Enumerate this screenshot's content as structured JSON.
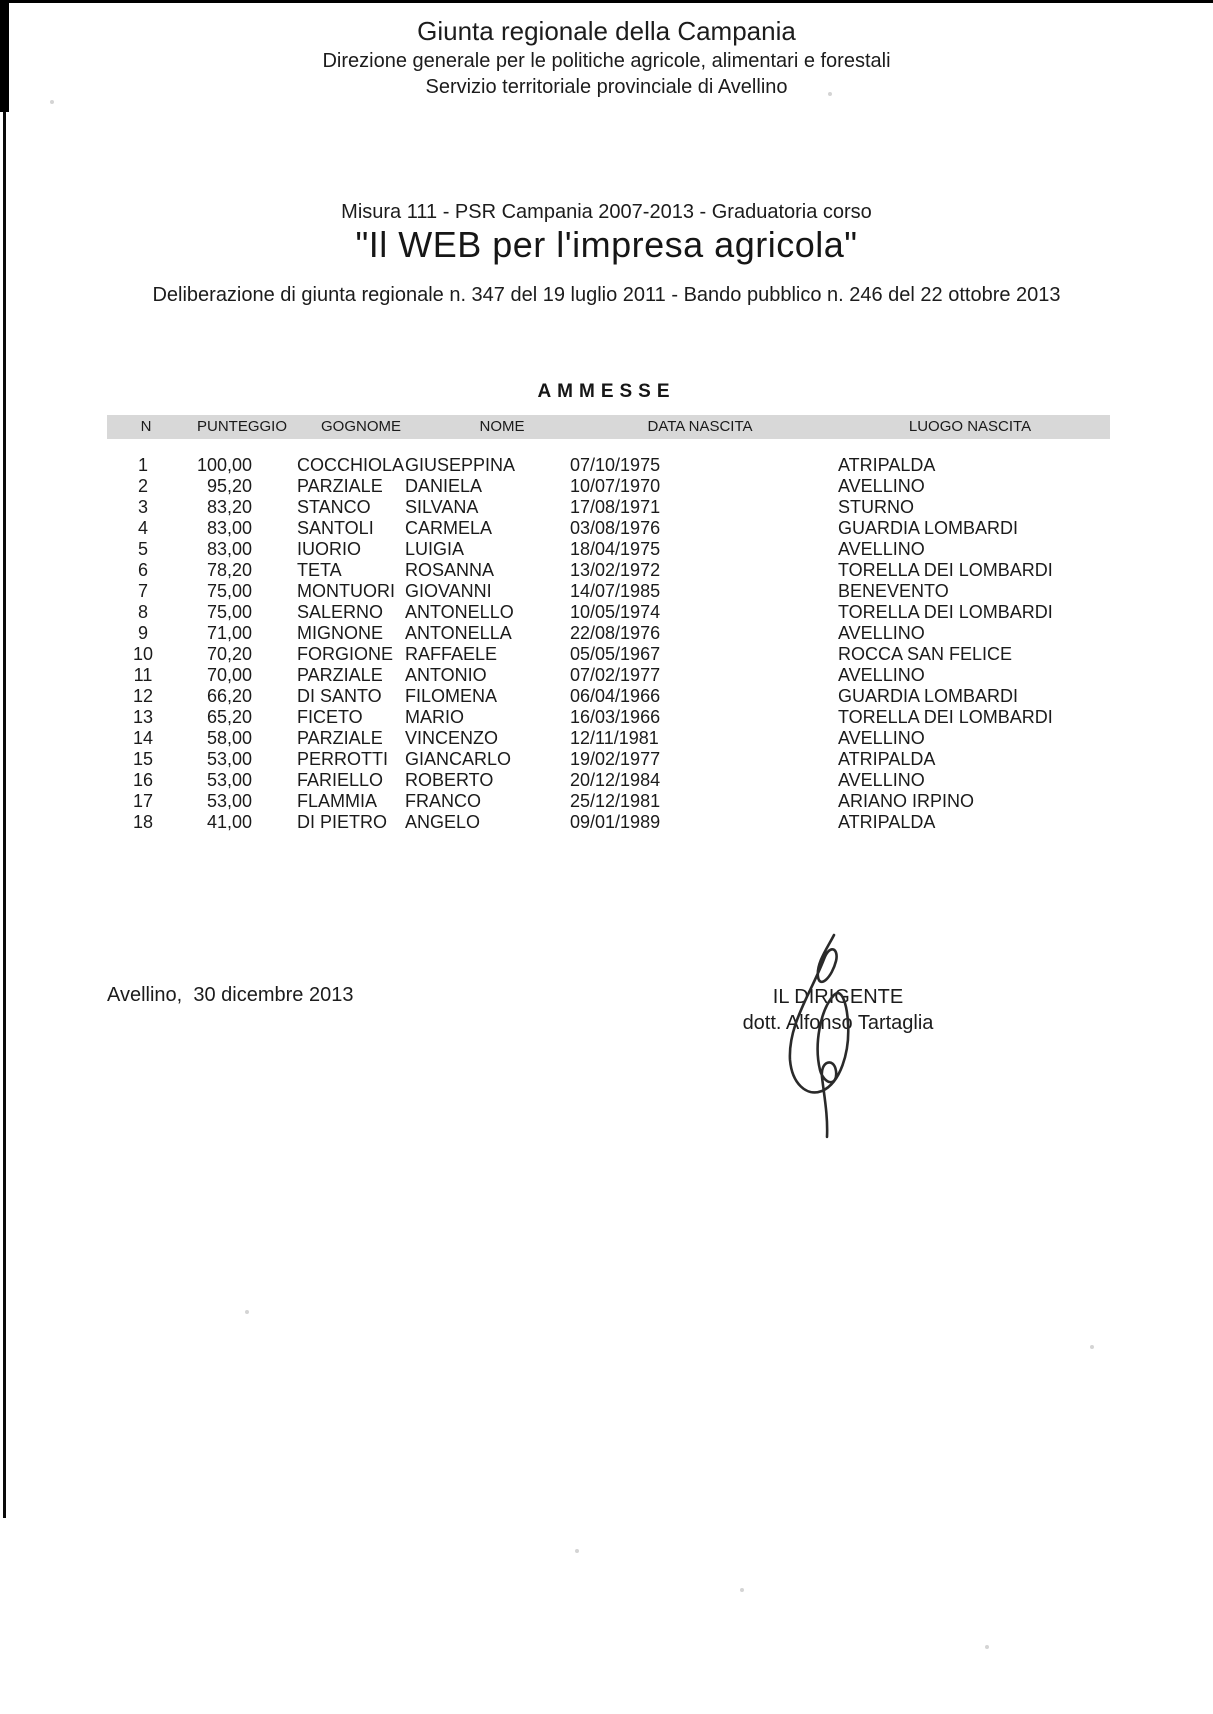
{
  "letterhead": {
    "org_line1": "Giunta regionale della Campania",
    "org_line2": "Direzione generale per le politiche agricole, alimentari e forestali",
    "org_line3": "Servizio territoriale provinciale di Avellino"
  },
  "title_block": {
    "measure_line": "Misura 111 - PSR Campania 2007-2013 - Graduatoria corso",
    "course_title": "\"Il WEB per l'impresa agricola\"",
    "deliberation_line": "Deliberazione di giunta regionale n. 347 del 19 luglio 2011 - Bando pubblico n. 246 del 22 ottobre 2013"
  },
  "section_heading": "AMMESSE",
  "table": {
    "headers": [
      "N",
      "PUNTEGGIO",
      "GOGNOME",
      "NOME",
      "DATA NASCITA",
      "LUOGO NASCITA"
    ],
    "rows": [
      {
        "n": "1",
        "punteggio": "100,00",
        "cognome": "COCCHIOLA",
        "nome": "GIUSEPPINA",
        "data_nascita": "07/10/1975",
        "luogo_nascita": "ATRIPALDA"
      },
      {
        "n": "2",
        "punteggio": "95,20",
        "cognome": "PARZIALE",
        "nome": "DANIELA",
        "data_nascita": "10/07/1970",
        "luogo_nascita": "AVELLINO"
      },
      {
        "n": "3",
        "punteggio": "83,20",
        "cognome": "STANCO",
        "nome": "SILVANA",
        "data_nascita": "17/08/1971",
        "luogo_nascita": "STURNO"
      },
      {
        "n": "4",
        "punteggio": "83,00",
        "cognome": "SANTOLI",
        "nome": "CARMELA",
        "data_nascita": "03/08/1976",
        "luogo_nascita": "GUARDIA LOMBARDI"
      },
      {
        "n": "5",
        "punteggio": "83,00",
        "cognome": "IUORIO",
        "nome": "LUIGIA",
        "data_nascita": "18/04/1975",
        "luogo_nascita": "AVELLINO"
      },
      {
        "n": "6",
        "punteggio": "78,20",
        "cognome": "TETA",
        "nome": "ROSANNA",
        "data_nascita": "13/02/1972",
        "luogo_nascita": "TORELLA DEI LOMBARDI"
      },
      {
        "n": "7",
        "punteggio": "75,00",
        "cognome": "MONTUORI",
        "nome": "GIOVANNI",
        "data_nascita": "14/07/1985",
        "luogo_nascita": "BENEVENTO"
      },
      {
        "n": "8",
        "punteggio": "75,00",
        "cognome": "SALERNO",
        "nome": "ANTONELLO",
        "data_nascita": "10/05/1974",
        "luogo_nascita": "TORELLA DEI LOMBARDI"
      },
      {
        "n": "9",
        "punteggio": "71,00",
        "cognome": "MIGNONE",
        "nome": "ANTONELLA",
        "data_nascita": "22/08/1976",
        "luogo_nascita": "AVELLINO"
      },
      {
        "n": "10",
        "punteggio": "70,20",
        "cognome": "FORGIONE",
        "nome": "RAFFAELE",
        "data_nascita": "05/05/1967",
        "luogo_nascita": "ROCCA SAN FELICE"
      },
      {
        "n": "11",
        "punteggio": "70,00",
        "cognome": "PARZIALE",
        "nome": "ANTONIO",
        "data_nascita": "07/02/1977",
        "luogo_nascita": "AVELLINO"
      },
      {
        "n": "12",
        "punteggio": "66,20",
        "cognome": "DI SANTO",
        "nome": "FILOMENA",
        "data_nascita": "06/04/1966",
        "luogo_nascita": "GUARDIA LOMBARDI"
      },
      {
        "n": "13",
        "punteggio": "65,20",
        "cognome": "FICETO",
        "nome": "MARIO",
        "data_nascita": "16/03/1966",
        "luogo_nascita": "TORELLA DEI LOMBARDI"
      },
      {
        "n": "14",
        "punteggio": "58,00",
        "cognome": "PARZIALE",
        "nome": "VINCENZO",
        "data_nascita": "12/11/1981",
        "luogo_nascita": "AVELLINO"
      },
      {
        "n": "15",
        "punteggio": "53,00",
        "cognome": "PERROTTI",
        "nome": "GIANCARLO",
        "data_nascita": "19/02/1977",
        "luogo_nascita": "ATRIPALDA"
      },
      {
        "n": "16",
        "punteggio": "53,00",
        "cognome": "FARIELLO",
        "nome": "ROBERTO",
        "data_nascita": "20/12/1984",
        "luogo_nascita": "AVELLINO"
      },
      {
        "n": "17",
        "punteggio": "53,00",
        "cognome": "FLAMMIA",
        "nome": "FRANCO",
        "data_nascita": "25/12/1981",
        "luogo_nascita": "ARIANO IRPINO"
      },
      {
        "n": "18",
        "punteggio": "41,00",
        "cognome": "DI PIETRO",
        "nome": "ANGELO",
        "data_nascita": "09/01/1989",
        "luogo_nascita": "ATRIPALDA"
      }
    ]
  },
  "footer": {
    "place_date": "Avellino,  30 dicembre 2013",
    "signer_title": "IL DIRIGENTE",
    "signer_name": "dott. Alfonso Tartaglia"
  },
  "colors": {
    "table_header_bar": "#d8d8d8",
    "text": "#1b1b1b"
  }
}
